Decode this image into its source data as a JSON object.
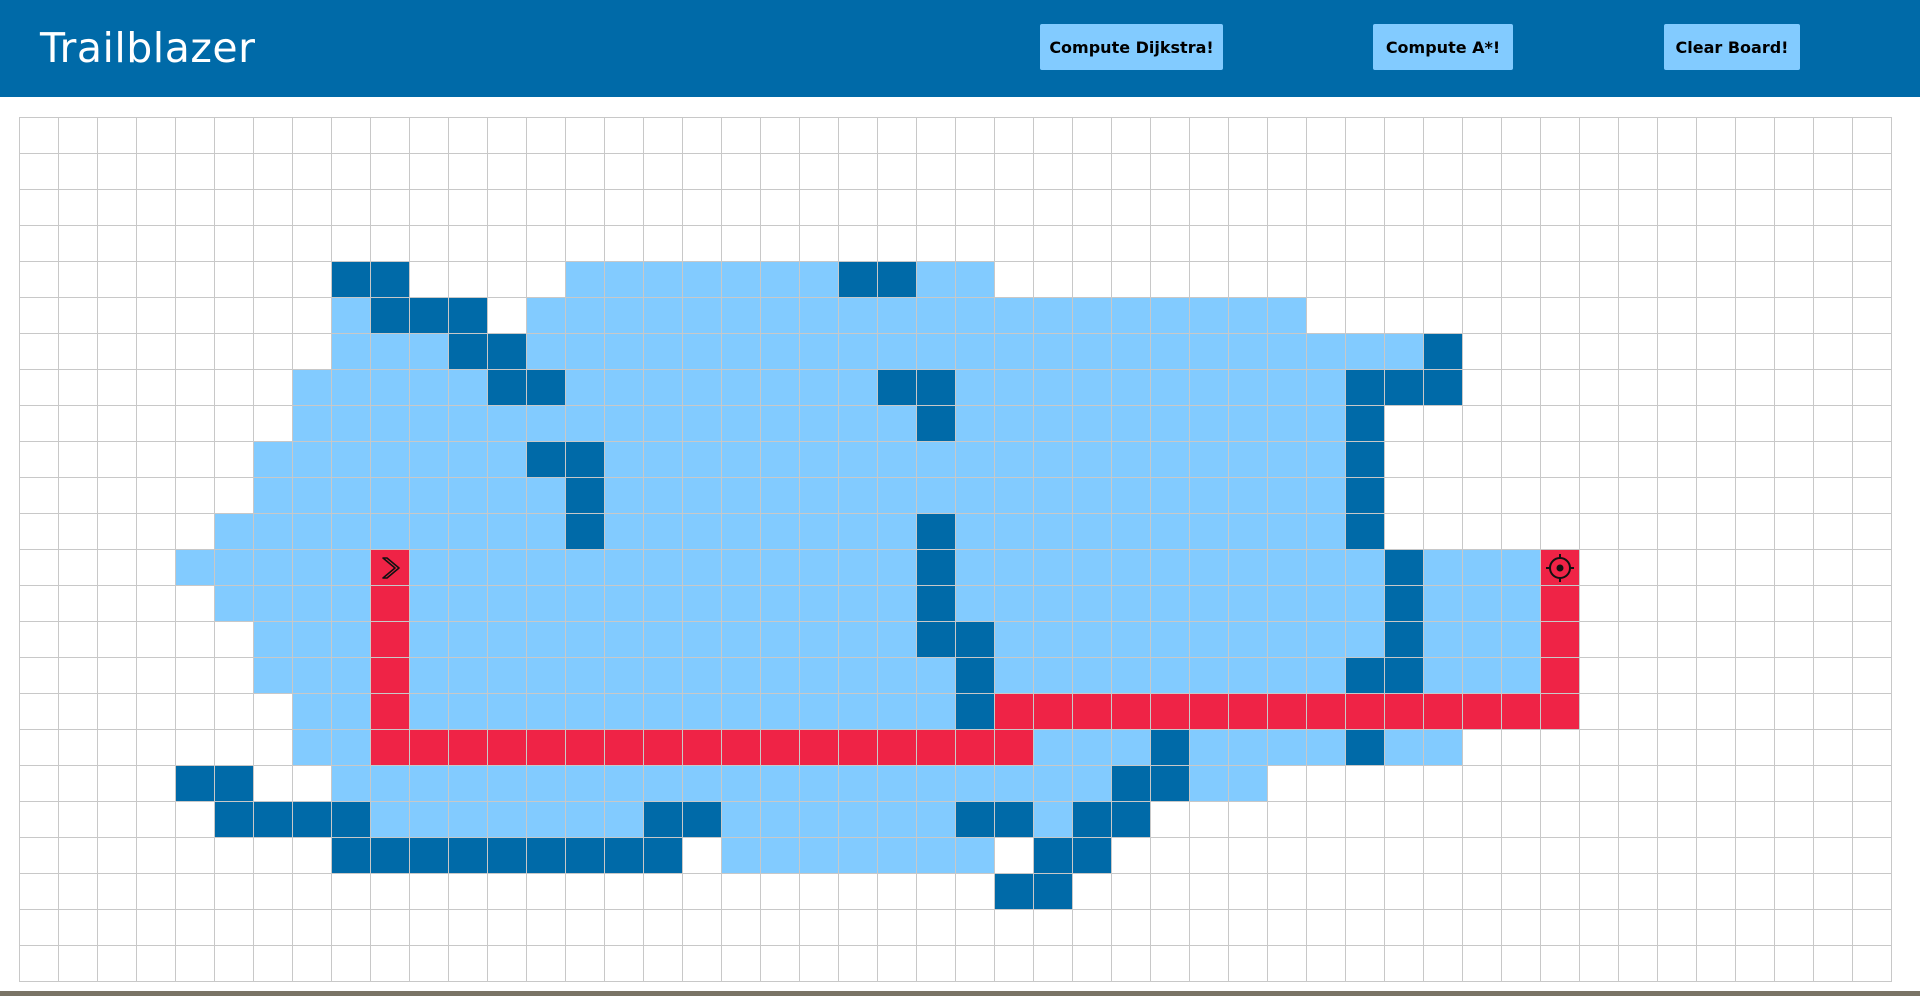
{
  "app": {
    "title": "Trailblazer"
  },
  "toolbar": {
    "dijkstra_label": "Compute Dijkstra!",
    "astar_label": "Compute A*!",
    "clear_label": "Clear Board!"
  },
  "colors": {
    "header_bg": "#006aa8",
    "button_bg": "#82cbff",
    "wall": "#006aa8",
    "visited": "#82cbff",
    "path": "#ef2346",
    "gridline": "#c8c8c8"
  },
  "board": {
    "rows": 24,
    "cols": 48,
    "start": {
      "row": 12,
      "col": 9,
      "icon": "chevron-right-icon"
    },
    "target": {
      "row": 12,
      "col": 39,
      "icon": "target-icon"
    },
    "walls": [
      [
        4,
        8
      ],
      [
        4,
        9
      ],
      [
        4,
        21
      ],
      [
        4,
        22
      ],
      [
        5,
        9
      ],
      [
        5,
        10
      ],
      [
        5,
        11
      ],
      [
        6,
        11
      ],
      [
        6,
        12
      ],
      [
        6,
        36
      ],
      [
        7,
        12
      ],
      [
        7,
        13
      ],
      [
        7,
        22
      ],
      [
        7,
        23
      ],
      [
        7,
        34
      ],
      [
        7,
        35
      ],
      [
        7,
        36
      ],
      [
        8,
        23
      ],
      [
        8,
        34
      ],
      [
        9,
        13
      ],
      [
        9,
        14
      ],
      [
        9,
        34
      ],
      [
        10,
        14
      ],
      [
        10,
        34
      ],
      [
        11,
        14
      ],
      [
        11,
        23
      ],
      [
        11,
        34
      ],
      [
        12,
        23
      ],
      [
        12,
        35
      ],
      [
        13,
        23
      ],
      [
        13,
        35
      ],
      [
        14,
        23
      ],
      [
        14,
        24
      ],
      [
        14,
        35
      ],
      [
        15,
        24
      ],
      [
        15,
        34
      ],
      [
        15,
        35
      ],
      [
        16,
        24
      ],
      [
        17,
        29
      ],
      [
        17,
        34
      ],
      [
        18,
        4
      ],
      [
        18,
        5
      ],
      [
        18,
        28
      ],
      [
        18,
        29
      ],
      [
        19,
        5
      ],
      [
        19,
        6
      ],
      [
        19,
        7
      ],
      [
        19,
        8
      ],
      [
        19,
        16
      ],
      [
        19,
        17
      ],
      [
        19,
        24
      ],
      [
        19,
        25
      ],
      [
        19,
        27
      ],
      [
        19,
        28
      ],
      [
        20,
        8
      ],
      [
        20,
        9
      ],
      [
        20,
        10
      ],
      [
        20,
        11
      ],
      [
        20,
        12
      ],
      [
        20,
        13
      ],
      [
        20,
        14
      ],
      [
        20,
        15
      ],
      [
        20,
        16
      ],
      [
        20,
        26
      ],
      [
        20,
        27
      ],
      [
        21,
        25
      ],
      [
        21,
        26
      ]
    ],
    "visited_ranges": [
      [
        4,
        14,
        24
      ],
      [
        5,
        8,
        8
      ],
      [
        5,
        13,
        32
      ],
      [
        6,
        8,
        10
      ],
      [
        6,
        13,
        35
      ],
      [
        7,
        7,
        11
      ],
      [
        7,
        14,
        21
      ],
      [
        7,
        24,
        33
      ],
      [
        8,
        7,
        22
      ],
      [
        8,
        24,
        33
      ],
      [
        9,
        6,
        12
      ],
      [
        9,
        15,
        33
      ],
      [
        10,
        6,
        13
      ],
      [
        10,
        15,
        33
      ],
      [
        11,
        5,
        13
      ],
      [
        11,
        15,
        22
      ],
      [
        11,
        24,
        33
      ],
      [
        12,
        4,
        8
      ],
      [
        12,
        10,
        22
      ],
      [
        12,
        24,
        34
      ],
      [
        12,
        36,
        38
      ],
      [
        13,
        5,
        22
      ],
      [
        13,
        24,
        34
      ],
      [
        13,
        36,
        38
      ],
      [
        14,
        6,
        22
      ],
      [
        14,
        25,
        34
      ],
      [
        14,
        36,
        38
      ],
      [
        15,
        6,
        23
      ],
      [
        15,
        25,
        33
      ],
      [
        15,
        36,
        38
      ],
      [
        16,
        7,
        23
      ],
      [
        17,
        7,
        8
      ],
      [
        17,
        26,
        28
      ],
      [
        17,
        30,
        33
      ],
      [
        17,
        35,
        36
      ],
      [
        18,
        8,
        27
      ],
      [
        18,
        30,
        31
      ],
      [
        19,
        9,
        15
      ],
      [
        19,
        18,
        23
      ],
      [
        19,
        26,
        26
      ],
      [
        20,
        18,
        24
      ]
    ],
    "path": [
      [
        12,
        9
      ],
      [
        13,
        9
      ],
      [
        14,
        9
      ],
      [
        15,
        9
      ],
      [
        16,
        9
      ],
      [
        17,
        9
      ],
      [
        17,
        10
      ],
      [
        17,
        11
      ],
      [
        17,
        12
      ],
      [
        17,
        13
      ],
      [
        17,
        14
      ],
      [
        17,
        15
      ],
      [
        17,
        16
      ],
      [
        17,
        17
      ],
      [
        17,
        18
      ],
      [
        17,
        19
      ],
      [
        17,
        20
      ],
      [
        17,
        21
      ],
      [
        17,
        22
      ],
      [
        17,
        23
      ],
      [
        17,
        24
      ],
      [
        17,
        25
      ],
      [
        16,
        25
      ],
      [
        16,
        26
      ],
      [
        16,
        27
      ],
      [
        16,
        28
      ],
      [
        16,
        29
      ],
      [
        16,
        30
      ],
      [
        16,
        31
      ],
      [
        16,
        32
      ],
      [
        16,
        33
      ],
      [
        16,
        34
      ],
      [
        16,
        35
      ],
      [
        16,
        36
      ],
      [
        16,
        37
      ],
      [
        16,
        38
      ],
      [
        16,
        39
      ],
      [
        15,
        39
      ],
      [
        14,
        39
      ],
      [
        13,
        39
      ],
      [
        12,
        39
      ]
    ]
  }
}
